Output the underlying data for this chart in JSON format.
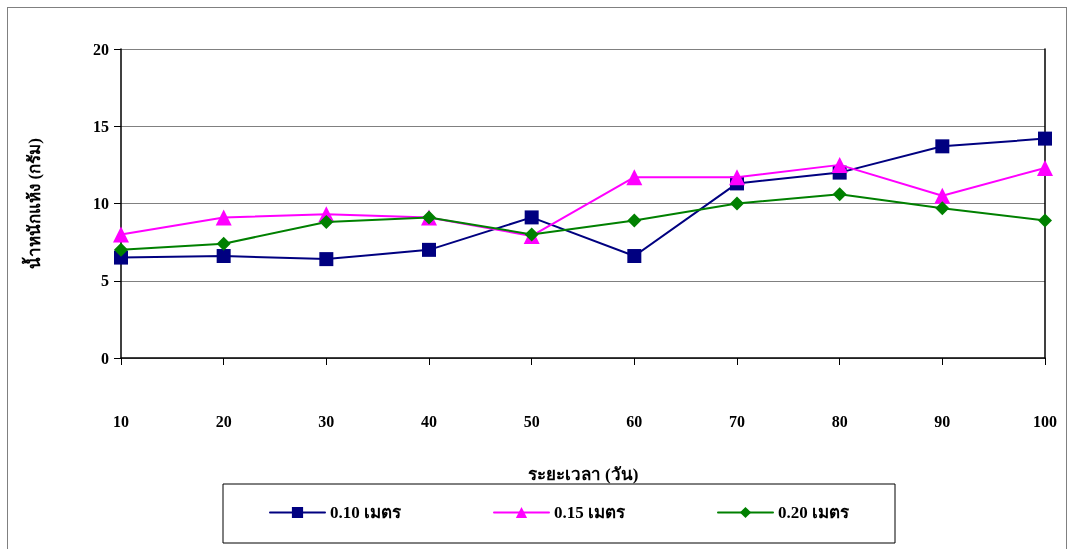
{
  "chart_data": {
    "type": "line",
    "xlabel": "ระยะเวลา (วัน)",
    "ylabel": "น้ำหนักแห้ง (กรัม)",
    "categories": [
      "10",
      "20",
      "30",
      "40",
      "50",
      "60",
      "70",
      "80",
      "90",
      "100"
    ],
    "series": [
      {
        "name": "0.10 เมตร",
        "color": "#000080",
        "marker": "square",
        "values": [
          6.5,
          6.6,
          6.4,
          7.0,
          9.1,
          6.6,
          11.3,
          12.0,
          13.7,
          14.2
        ]
      },
      {
        "name": "0.15 เมตร",
        "color": "#ff00ff",
        "marker": "triangle",
        "values": [
          8.0,
          9.1,
          9.3,
          9.1,
          7.9,
          11.7,
          11.7,
          12.5,
          10.5,
          12.3
        ]
      },
      {
        "name": "0.20 เมตร",
        "color": "#008000",
        "marker": "diamond",
        "values": [
          7.0,
          7.4,
          8.8,
          9.1,
          8.0,
          8.9,
          10.0,
          10.6,
          9.7,
          8.9
        ]
      }
    ],
    "ylim": [
      0,
      20
    ],
    "yticks": [
      0,
      5,
      10,
      15,
      20
    ],
    "grid": "y",
    "legend": "bottom",
    "line_style": "solid"
  }
}
